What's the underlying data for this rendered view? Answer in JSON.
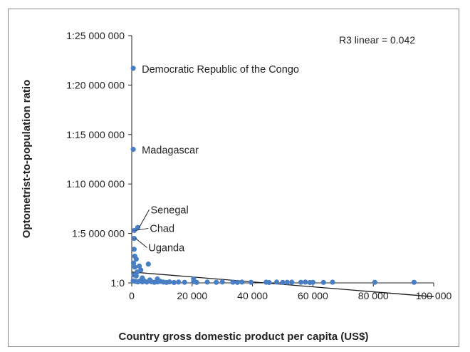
{
  "chart_data": {
    "type": "scatter",
    "title": "",
    "xlabel": "Country gross domestic product per capita (US$)",
    "ylabel": "Optometrist-to-population ratio",
    "xlim": [
      0,
      100000
    ],
    "ylim": [
      0,
      25000000
    ],
    "xticks": [
      0,
      20000,
      40000,
      60000,
      80000,
      100000
    ],
    "xtick_labels": [
      "0",
      "20 000",
      "40 000",
      "60 000",
      "80 000",
      "100 000"
    ],
    "yticks": [
      0,
      5000000,
      10000000,
      15000000,
      20000000,
      25000000
    ],
    "ytick_labels": [
      "1:0",
      "1:5 000 000",
      "1:10 000 000",
      "1:15 000 000",
      "1:20 000 000",
      "1:25 000 000"
    ],
    "annotation": "R3 linear = 0.042",
    "grid": false,
    "fit_line": {
      "x": [
        0,
        100000
      ],
      "y": [
        1100000,
        -1400000
      ]
    },
    "labeled_points": [
      {
        "label": "Democratic Republic of the Congo",
        "x": 500,
        "y": 21700000
      },
      {
        "label": "Madagascar",
        "x": 500,
        "y": 13500000
      },
      {
        "label": "Senegal",
        "x": 2000,
        "y": 5600000
      },
      {
        "label": "Chad",
        "x": 800,
        "y": 5300000
      },
      {
        "label": "Uganda",
        "x": 800,
        "y": 4500000
      }
    ],
    "points": [
      {
        "x": 500,
        "y": 21700000
      },
      {
        "x": 500,
        "y": 13500000
      },
      {
        "x": 2000,
        "y": 5600000
      },
      {
        "x": 800,
        "y": 5300000
      },
      {
        "x": 800,
        "y": 4500000
      },
      {
        "x": 800,
        "y": 3400000
      },
      {
        "x": 1000,
        "y": 2700000
      },
      {
        "x": 1500,
        "y": 2400000
      },
      {
        "x": 600,
        "y": 2000000
      },
      {
        "x": 1000,
        "y": 1600000
      },
      {
        "x": 2500,
        "y": 1700000
      },
      {
        "x": 3000,
        "y": 1300000
      },
      {
        "x": 5500,
        "y": 1900000
      },
      {
        "x": 1800,
        "y": 1100000
      },
      {
        "x": 700,
        "y": 800000
      },
      {
        "x": 1500,
        "y": 700000
      },
      {
        "x": 3500,
        "y": 500000
      },
      {
        "x": 8500,
        "y": 400000
      },
      {
        "x": 20500,
        "y": 400000
      },
      {
        "x": 6000,
        "y": 300000
      },
      {
        "x": 500,
        "y": 200000
      },
      {
        "x": 1200,
        "y": 150000
      },
      {
        "x": 2000,
        "y": 100000
      },
      {
        "x": 2800,
        "y": 200000
      },
      {
        "x": 3500,
        "y": 100000
      },
      {
        "x": 4200,
        "y": 180000
      },
      {
        "x": 5000,
        "y": 80000
      },
      {
        "x": 6500,
        "y": 120000
      },
      {
        "x": 7500,
        "y": 60000
      },
      {
        "x": 8500,
        "y": 100000
      },
      {
        "x": 9500,
        "y": 150000
      },
      {
        "x": 10500,
        "y": 80000
      },
      {
        "x": 11500,
        "y": 50000
      },
      {
        "x": 12500,
        "y": 100000
      },
      {
        "x": 14000,
        "y": 40000
      },
      {
        "x": 15500,
        "y": 80000
      },
      {
        "x": 17500,
        "y": 60000
      },
      {
        "x": 20500,
        "y": 120000
      },
      {
        "x": 21500,
        "y": 50000
      },
      {
        "x": 25000,
        "y": 80000
      },
      {
        "x": 28000,
        "y": 60000
      },
      {
        "x": 30000,
        "y": 90000
      },
      {
        "x": 33500,
        "y": 70000
      },
      {
        "x": 35000,
        "y": 50000
      },
      {
        "x": 36500,
        "y": 80000
      },
      {
        "x": 39500,
        "y": 60000
      },
      {
        "x": 44500,
        "y": 70000
      },
      {
        "x": 45500,
        "y": 40000
      },
      {
        "x": 48000,
        "y": 80000
      },
      {
        "x": 50000,
        "y": 50000
      },
      {
        "x": 51500,
        "y": 60000
      },
      {
        "x": 53000,
        "y": 70000
      },
      {
        "x": 56000,
        "y": 60000
      },
      {
        "x": 57500,
        "y": 80000
      },
      {
        "x": 59000,
        "y": 40000
      },
      {
        "x": 60000,
        "y": 60000
      },
      {
        "x": 63500,
        "y": 50000
      },
      {
        "x": 66500,
        "y": 70000
      },
      {
        "x": 80500,
        "y": 60000
      },
      {
        "x": 93500,
        "y": 60000
      }
    ],
    "colors": {
      "point": "#4a7ec4",
      "line": "#1a1a1a",
      "axis": "#222222"
    }
  }
}
